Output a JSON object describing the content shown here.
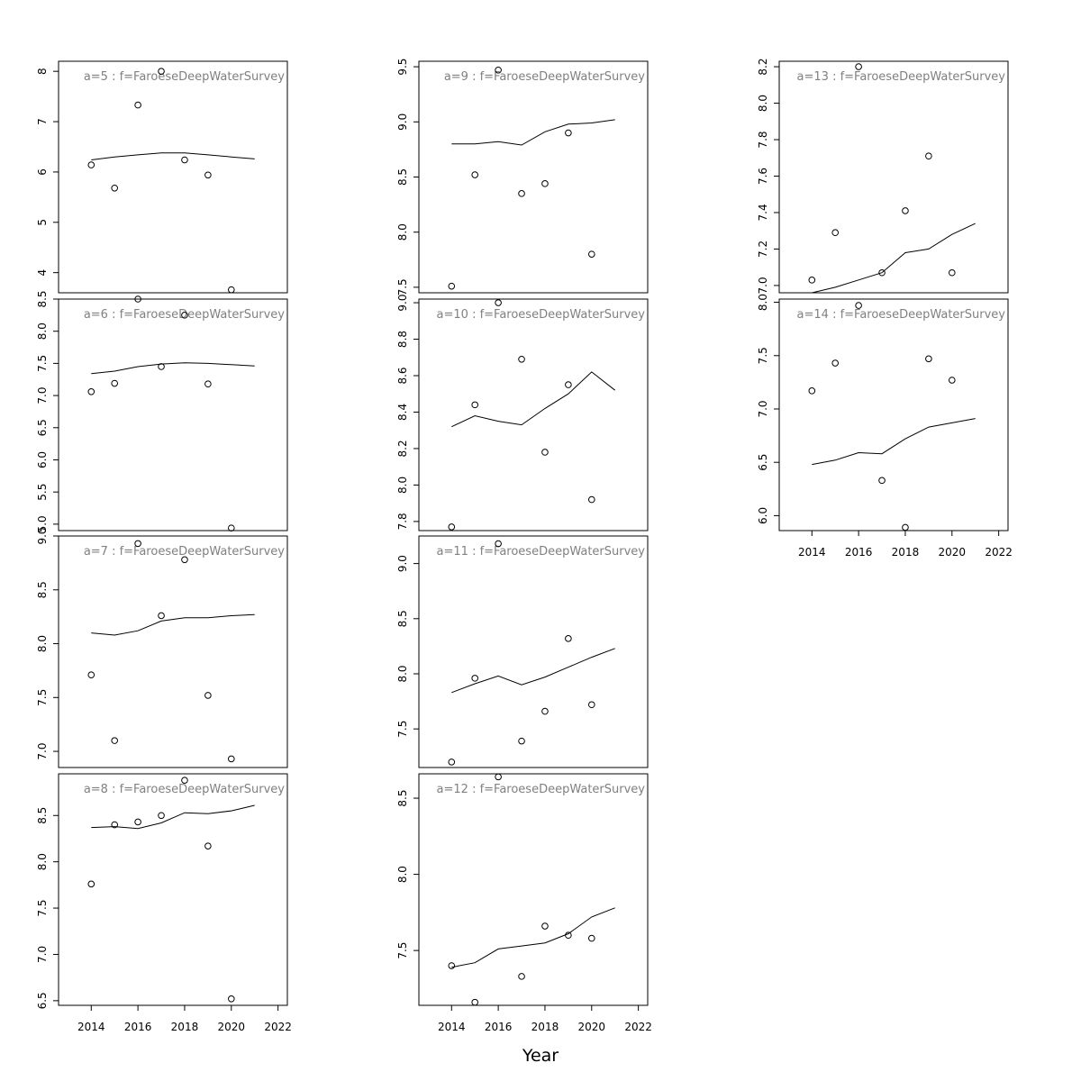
{
  "chart_data": {
    "type": "scatter",
    "layout": "small-multiples 4 rows x 3 columns, column-major",
    "xlabel": "Year",
    "ylabel": "",
    "x_ticks": [
      2014,
      2016,
      2018,
      2020,
      2022
    ],
    "xlim": [
      2012.6,
      2022.4
    ],
    "fit_x": [
      2014,
      2015,
      2016,
      2017,
      2018,
      2019,
      2020,
      2021
    ],
    "obs_x": [
      2014,
      2015,
      2016,
      2017,
      2018,
      2019,
      2020
    ],
    "panels": [
      {
        "title": "a=5  :  f=FaroeseDeepWaterSurvey",
        "col": 0,
        "row": 0,
        "ylim": [
          3.6,
          8.2
        ],
        "y_ticks": [
          4,
          5,
          6,
          7,
          8
        ],
        "fit": [
          6.24,
          6.3,
          6.34,
          6.38,
          6.38,
          6.34,
          6.3,
          6.26
        ],
        "obs": [
          6.14,
          5.68,
          7.33,
          8.0,
          6.24,
          5.94,
          3.66
        ]
      },
      {
        "title": "a=6  :  f=FaroeseDeepWaterSurvey",
        "col": 0,
        "row": 1,
        "ylim": [
          4.9,
          8.5
        ],
        "y_ticks": [
          5.0,
          5.5,
          6.0,
          6.5,
          7.0,
          7.5,
          8.0,
          8.5
        ],
        "fit": [
          7.34,
          7.38,
          7.45,
          7.49,
          7.51,
          7.5,
          7.48,
          7.46
        ],
        "obs": [
          7.06,
          7.19,
          8.5,
          7.45,
          8.25,
          7.18,
          4.94
        ]
      },
      {
        "title": "a=7  :  f=FaroeseDeepWaterSurvey",
        "col": 0,
        "row": 2,
        "ylim": [
          6.85,
          9.0
        ],
        "y_ticks": [
          7.0,
          7.5,
          8.0,
          8.5,
          9.0
        ],
        "fit": [
          8.1,
          8.08,
          8.12,
          8.21,
          8.24,
          8.24,
          8.26,
          8.27
        ],
        "obs": [
          7.71,
          7.1,
          8.93,
          8.26,
          8.78,
          7.52,
          6.93
        ]
      },
      {
        "title": "a=8  :  f=FaroeseDeepWaterSurvey",
        "col": 0,
        "row": 3,
        "ylim": [
          6.45,
          8.95
        ],
        "y_ticks": [
          6.5,
          7.0,
          7.5,
          8.0,
          8.5
        ],
        "fit": [
          8.37,
          8.38,
          8.36,
          8.42,
          8.53,
          8.52,
          8.55,
          8.61
        ],
        "obs": [
          7.76,
          8.4,
          8.43,
          8.5,
          8.88,
          8.17,
          6.52
        ]
      },
      {
        "title": "a=9  :  f=FaroeseDeepWaterSurvey",
        "col": 1,
        "row": 0,
        "ylim": [
          7.45,
          9.55
        ],
        "y_ticks": [
          7.5,
          8.0,
          8.5,
          9.0,
          9.5
        ],
        "fit": [
          8.8,
          8.8,
          8.82,
          8.79,
          8.91,
          8.98,
          8.99,
          9.02
        ],
        "obs": [
          7.51,
          8.52,
          9.47,
          8.35,
          8.44,
          8.9,
          7.8
        ]
      },
      {
        "title": "a=10  :  f=FaroeseDeepWaterSurvey",
        "col": 1,
        "row": 1,
        "ylim": [
          7.75,
          9.02
        ],
        "y_ticks": [
          7.8,
          8.0,
          8.2,
          8.4,
          8.6,
          8.8,
          9.0
        ],
        "fit": [
          8.32,
          8.38,
          8.35,
          8.33,
          8.42,
          8.5,
          8.62,
          8.52
        ],
        "obs": [
          7.77,
          8.44,
          9.0,
          8.69,
          8.18,
          8.55,
          7.92
        ]
      },
      {
        "title": "a=11  :  f=FaroeseDeepWaterSurvey",
        "col": 1,
        "row": 2,
        "ylim": [
          7.15,
          9.25
        ],
        "y_ticks": [
          7.5,
          8.0,
          8.5,
          9.0
        ],
        "fit": [
          7.83,
          7.91,
          7.98,
          7.9,
          7.97,
          8.06,
          8.15,
          8.23
        ],
        "obs": [
          7.2,
          7.96,
          9.18,
          7.39,
          7.66,
          8.32,
          7.72
        ]
      },
      {
        "title": "a=12  :  f=FaroeseDeepWaterSurvey",
        "col": 1,
        "row": 3,
        "ylim": [
          7.14,
          8.66
        ],
        "y_ticks": [
          7.5,
          8.0,
          8.5
        ],
        "fit": [
          7.39,
          7.42,
          7.51,
          7.53,
          7.55,
          7.61,
          7.72,
          7.78
        ],
        "obs": [
          7.4,
          7.16,
          8.64,
          7.33,
          7.66,
          7.6,
          7.58
        ]
      },
      {
        "title": "a=13  :  f=FaroeseDeepWaterSurvey",
        "col": 2,
        "row": 0,
        "ylim": [
          6.96,
          8.23
        ],
        "y_ticks": [
          7.0,
          7.2,
          7.4,
          7.6,
          7.8,
          8.0,
          8.2
        ],
        "fit": [
          6.96,
          6.99,
          7.03,
          7.07,
          7.18,
          7.2,
          7.28,
          7.34
        ],
        "obs": [
          7.03,
          7.29,
          8.2,
          7.07,
          7.41,
          7.71,
          7.07
        ]
      },
      {
        "title": "a=14  :  f=FaroeseDeepWaterSurvey",
        "col": 2,
        "row": 1,
        "ylim": [
          5.86,
          8.03
        ],
        "y_ticks": [
          6.0,
          6.5,
          7.0,
          7.5,
          8.0
        ],
        "fit": [
          6.48,
          6.52,
          6.59,
          6.58,
          6.72,
          6.83,
          6.87,
          6.91
        ],
        "obs": [
          7.17,
          7.43,
          7.97,
          6.33,
          5.89,
          7.47,
          7.27
        ]
      }
    ],
    "x_axis_panels": [
      {
        "col": 0,
        "row": 3
      },
      {
        "col": 1,
        "row": 3
      },
      {
        "col": 2,
        "row": 1
      }
    ]
  }
}
